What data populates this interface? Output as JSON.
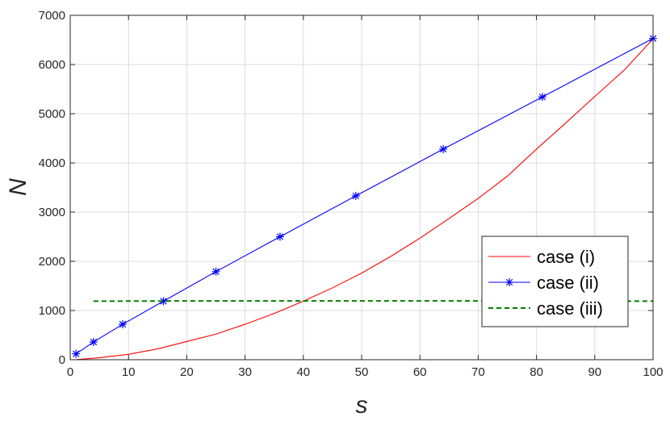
{
  "chart_data": {
    "type": "line",
    "title": "",
    "xlabel": "s",
    "ylabel": "N",
    "xlim": [
      0,
      100
    ],
    "ylim": [
      0,
      7000
    ],
    "xticks": [
      0,
      10,
      20,
      30,
      40,
      50,
      60,
      70,
      80,
      90,
      100
    ],
    "yticks": [
      0,
      1000,
      2000,
      3000,
      4000,
      5000,
      6000,
      7000
    ],
    "grid": true,
    "legend": "lower-right",
    "series": [
      {
        "name": "case (i)",
        "color": "#ff0000",
        "style": "solid",
        "marker": "none",
        "x": [
          1,
          5,
          10,
          15,
          20,
          25,
          30,
          35,
          40,
          45,
          50,
          55,
          60,
          65,
          70,
          75,
          80,
          85,
          90,
          95,
          100
        ],
        "y": [
          1,
          40,
          110,
          220,
          370,
          520,
          720,
          940,
          1190,
          1460,
          1760,
          2100,
          2470,
          2870,
          3280,
          3730,
          4280,
          4810,
          5350,
          5880,
          6520
        ]
      },
      {
        "name": "case (ii)",
        "color": "#0000ff",
        "style": "solid",
        "marker": "star",
        "x": [
          1,
          4,
          9,
          16,
          25,
          36,
          49,
          64,
          81,
          100
        ],
        "y": [
          120,
          360,
          720,
          1190,
          1790,
          2500,
          3330,
          4280,
          5340,
          6530
        ]
      },
      {
        "name": "case (iii)",
        "color": "#008000",
        "style": "dashed",
        "marker": "none",
        "x": [
          4,
          20,
          40,
          60,
          80,
          100
        ],
        "y": [
          1190,
          1195,
          1195,
          1195,
          1195,
          1190
        ]
      }
    ]
  }
}
